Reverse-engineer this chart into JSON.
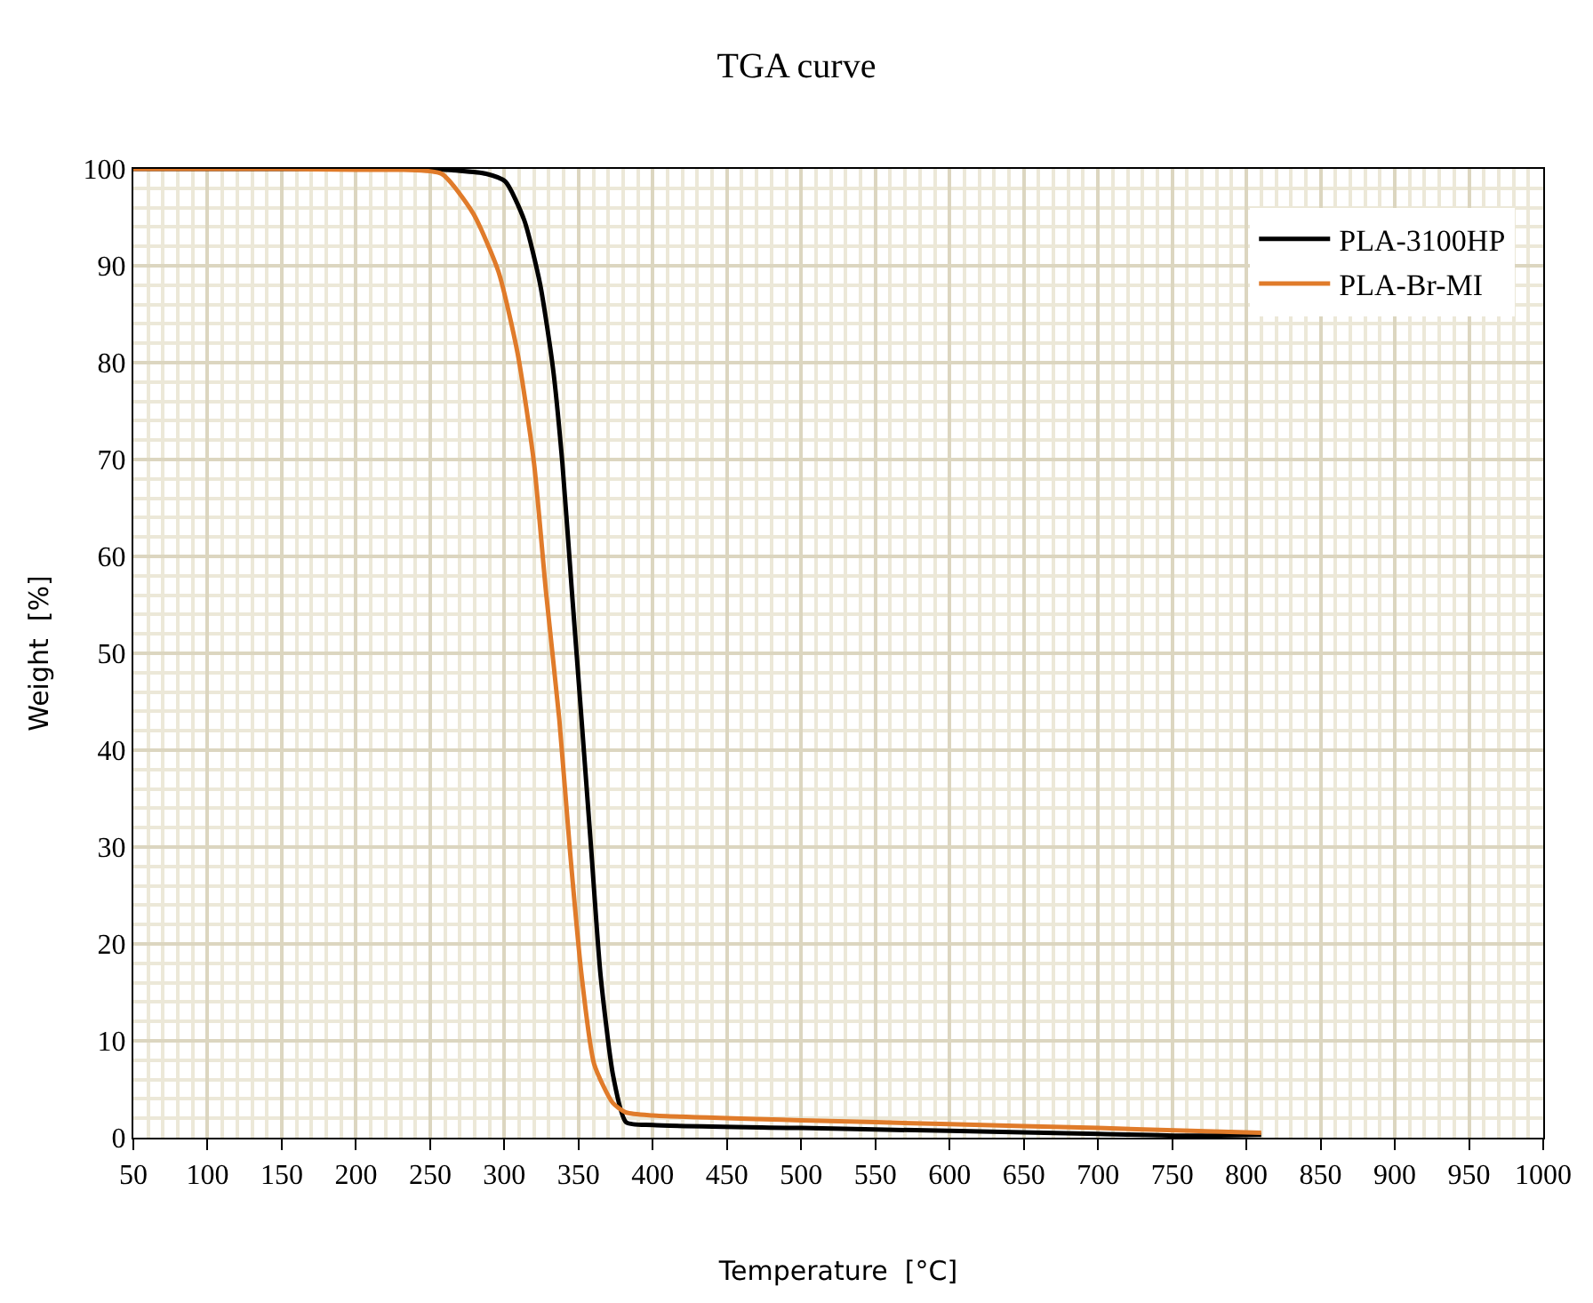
{
  "chart_data": {
    "type": "line",
    "title": "TGA curve",
    "xlabel": "Temperature  [°C]",
    "ylabel": "Weight  [%]",
    "xlim": [
      50,
      1000
    ],
    "xticks": [
      50,
      100,
      150,
      200,
      250,
      300,
      350,
      400,
      450,
      500,
      550,
      600,
      650,
      700,
      750,
      800,
      850,
      900,
      950,
      1000
    ],
    "ylim": [
      0,
      100
    ],
    "yticks": [
      0,
      10,
      20,
      30,
      40,
      50,
      60,
      70,
      80,
      90,
      100
    ],
    "grid": true,
    "legend": "top right",
    "marker": "none",
    "line_style": "solid",
    "series": [
      {
        "name": "PLA-3100HP",
        "color": "#000000",
        "x": [
          50,
          150,
          250,
          287.7,
          300.6,
          313.4,
          324.1,
          332.7,
          339.1,
          345.5,
          352,
          358.4,
          364.8,
          373.4,
          382,
          400,
          500,
          600,
          700,
          760,
          810
        ],
        "values": [
          100,
          100,
          100,
          99.5,
          98.7,
          94.7,
          88.1,
          79.5,
          69.6,
          56.4,
          43.2,
          30.0,
          16.8,
          6.3,
          1.6,
          1.3,
          1.0,
          0.7,
          0.4,
          0.2,
          0.3
        ]
      },
      {
        "name": "PLA-Br-MI",
        "color": "#e07b2a",
        "x": [
          50,
          150,
          200,
          232,
          257.7,
          279,
          296,
          309,
          320,
          328,
          337,
          344,
          352,
          360.5,
          373,
          382,
          400,
          500,
          600,
          700,
          810
        ],
        "values": [
          100,
          100,
          99.9,
          99.9,
          99.5,
          95.4,
          89.4,
          80.9,
          69.6,
          56.4,
          43.2,
          30.0,
          16.8,
          7.6,
          3.6,
          2.6,
          2.3,
          1.8,
          1.4,
          1.0,
          0.5
        ]
      }
    ]
  }
}
